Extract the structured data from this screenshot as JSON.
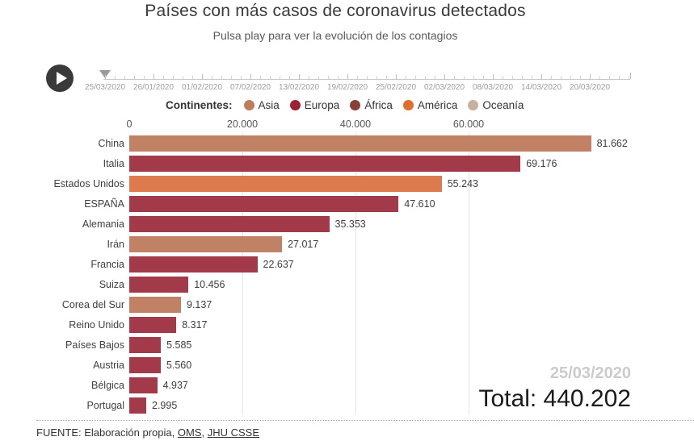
{
  "title": "Países con más casos de coronavirus detectados",
  "subtitle": "Pulsa play para ver la evolución de los contagios",
  "legend_label": "Continentes:",
  "timeline": {
    "dates": [
      "25/03/2020",
      "26/01/2020",
      "01/02/2020",
      "07/02/2020",
      "13/02/2020",
      "19/02/2020",
      "25/02/2020",
      "02/03/2020",
      "08/03/2020",
      "14/03/2020",
      "20/03/2020"
    ]
  },
  "chart_data": {
    "type": "bar",
    "orientation": "horizontal",
    "title": "Países con más casos de coronavirus detectados",
    "xlabel": "",
    "ylabel": "",
    "xticks_labels": [
      "0",
      "20.000",
      "40.000",
      "60.000"
    ],
    "xtick_values": [
      0,
      20000,
      40000,
      60000
    ],
    "xlim": [
      0,
      88600
    ],
    "grid": "vertical",
    "legend_position": "top",
    "legend": [
      {
        "name": "Asia",
        "color": "#c07b5a"
      },
      {
        "name": "Europa",
        "color": "#9c2133"
      },
      {
        "name": "África",
        "color": "#8a4037"
      },
      {
        "name": "América",
        "color": "#e06f2e"
      },
      {
        "name": "Oceanía",
        "color": "#c7b0a0"
      }
    ],
    "categories": [
      "China",
      "Italia",
      "Estados Unidos",
      "ESPAÑA",
      "Alemania",
      "Irán",
      "Francia",
      "Suiza",
      "Corea del Sur",
      "Reino Unido",
      "Países Bajos",
      "Austria",
      "Bélgica",
      "Portugal"
    ],
    "values": [
      81662,
      69176,
      55243,
      47610,
      35353,
      27017,
      22637,
      10456,
      9137,
      8317,
      5585,
      5560,
      4937,
      2995
    ],
    "value_labels": [
      "81.662",
      "69.176",
      "55.243",
      "47.610",
      "35.353",
      "27.017",
      "22.637",
      "10.456",
      "9.137",
      "8.317",
      "5.585",
      "5.560",
      "4.937",
      "2.995"
    ],
    "continents": [
      "Asia",
      "Europa",
      "América",
      "Europa",
      "Europa",
      "Asia",
      "Europa",
      "Europa",
      "Asia",
      "Europa",
      "Europa",
      "Europa",
      "Europa",
      "Europa"
    ],
    "bar_colors": {
      "Asia": "#c08165",
      "Europa": "#a23a49",
      "América": "#dd7b4e"
    }
  },
  "overlay": {
    "date": "25/03/2020",
    "total_label": "Total:",
    "total_value": "440.202"
  },
  "footer": {
    "prefix": "FUENTE: Elaboración propia, ",
    "link1": "OMS",
    "sep": ", ",
    "link2": "JHU CSSE"
  }
}
